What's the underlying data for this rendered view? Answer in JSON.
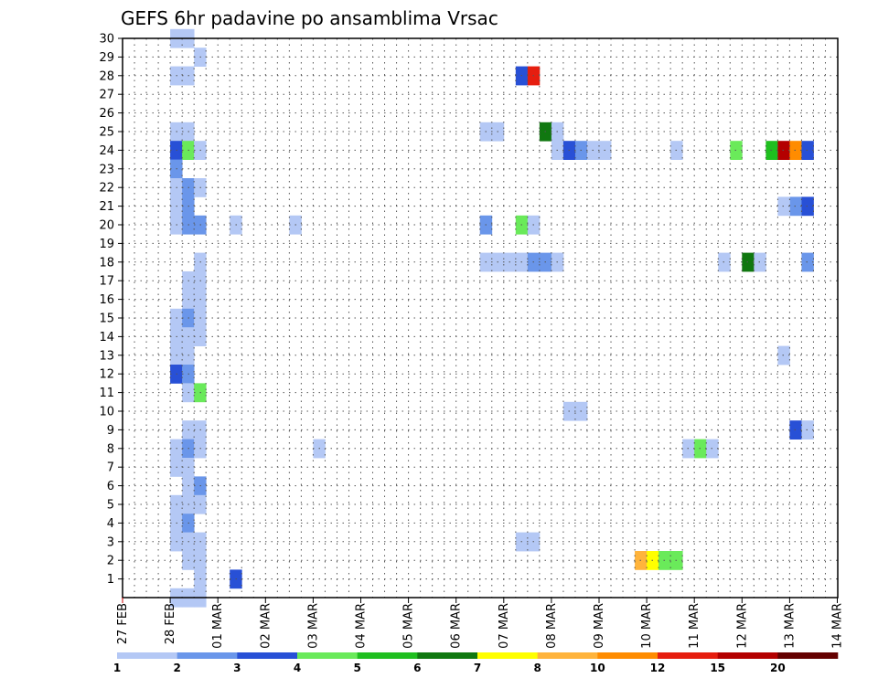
{
  "chart_data": {
    "type": "heatmap",
    "title": "GEFS 6hr padavine po ansamblima Vrsac",
    "xlabel": "",
    "ylabel": "",
    "x_tick_labels": [
      "27 FEB",
      "28 FEB",
      "01 MAR",
      "02 MAR",
      "03 MAR",
      "04 MAR",
      "05 MAR",
      "06 MAR",
      "07 MAR",
      "08 MAR",
      "09 MAR",
      "10 MAR",
      "11 MAR",
      "12 MAR",
      "13 MAR",
      "14 MAR"
    ],
    "x_ticks_per_day": 4,
    "y_tick_labels": [
      "1",
      "2",
      "3",
      "4",
      "5",
      "6",
      "7",
      "8",
      "9",
      "10",
      "11",
      "12",
      "13",
      "14",
      "15",
      "16",
      "17",
      "18",
      "19",
      "20",
      "21",
      "22",
      "23",
      "24",
      "25",
      "26",
      "27",
      "28",
      "29",
      "30"
    ],
    "ylim": [
      0,
      30
    ],
    "grid": true,
    "legend": {
      "placement": "bottom",
      "labels": [
        "1",
        "2",
        "3",
        "4",
        "5",
        "6",
        "7",
        "8",
        "10",
        "12",
        "15",
        "20"
      ],
      "colors": [
        "#b4c8f5",
        "#6a96ea",
        "#2850d6",
        "#6aea5a",
        "#1fbf1f",
        "#107810",
        "#ffff00",
        "#ffb43c",
        "#ff8c00",
        "#e61e0f",
        "#b40000",
        "#640000"
      ]
    },
    "units": "6-hourly step index",
    "cells": [
      {
        "x": 4,
        "y": 30,
        "c": 1
      },
      {
        "x": 5,
        "y": 30,
        "c": 1
      },
      {
        "x": 6,
        "y": 29,
        "c": 1
      },
      {
        "x": 4,
        "y": 28,
        "c": 1
      },
      {
        "x": 5,
        "y": 28,
        "c": 1
      },
      {
        "x": 4,
        "y": 25,
        "c": 1
      },
      {
        "x": 5,
        "y": 25,
        "c": 1
      },
      {
        "x": 4,
        "y": 24,
        "c": 3
      },
      {
        "x": 5,
        "y": 24,
        "c": 4
      },
      {
        "x": 6,
        "y": 24,
        "c": 1
      },
      {
        "x": 4,
        "y": 23,
        "c": 2
      },
      {
        "x": 4,
        "y": 22,
        "c": 1
      },
      {
        "x": 5,
        "y": 22,
        "c": 2
      },
      {
        "x": 6,
        "y": 22,
        "c": 1
      },
      {
        "x": 4,
        "y": 21,
        "c": 1
      },
      {
        "x": 5,
        "y": 21,
        "c": 2
      },
      {
        "x": 4,
        "y": 20,
        "c": 1
      },
      {
        "x": 5,
        "y": 20,
        "c": 2
      },
      {
        "x": 6,
        "y": 20,
        "c": 2
      },
      {
        "x": 9,
        "y": 20,
        "c": 1
      },
      {
        "x": 14,
        "y": 20,
        "c": 1
      },
      {
        "x": 6,
        "y": 18,
        "c": 1
      },
      {
        "x": 6,
        "y": 17,
        "c": 1
      },
      {
        "x": 5,
        "y": 17,
        "c": 1
      },
      {
        "x": 5,
        "y": 16,
        "c": 1
      },
      {
        "x": 6,
        "y": 16,
        "c": 1
      },
      {
        "x": 4,
        "y": 15,
        "c": 1
      },
      {
        "x": 5,
        "y": 15,
        "c": 2
      },
      {
        "x": 6,
        "y": 15,
        "c": 1
      },
      {
        "x": 4,
        "y": 14,
        "c": 1
      },
      {
        "x": 5,
        "y": 14,
        "c": 1
      },
      {
        "x": 6,
        "y": 14,
        "c": 1
      },
      {
        "x": 4,
        "y": 13,
        "c": 1
      },
      {
        "x": 5,
        "y": 13,
        "c": 1
      },
      {
        "x": 4,
        "y": 12,
        "c": 3
      },
      {
        "x": 5,
        "y": 12,
        "c": 2
      },
      {
        "x": 5,
        "y": 11,
        "c": 1
      },
      {
        "x": 6,
        "y": 11,
        "c": 4
      },
      {
        "x": 5,
        "y": 9,
        "c": 1
      },
      {
        "x": 6,
        "y": 9,
        "c": 1
      },
      {
        "x": 4,
        "y": 8,
        "c": 1
      },
      {
        "x": 5,
        "y": 8,
        "c": 2
      },
      {
        "x": 6,
        "y": 8,
        "c": 1
      },
      {
        "x": 16,
        "y": 8,
        "c": 1
      },
      {
        "x": 4,
        "y": 7,
        "c": 1
      },
      {
        "x": 5,
        "y": 7,
        "c": 1
      },
      {
        "x": 5,
        "y": 6,
        "c": 1
      },
      {
        "x": 6,
        "y": 6,
        "c": 2
      },
      {
        "x": 4,
        "y": 5,
        "c": 1
      },
      {
        "x": 5,
        "y": 5,
        "c": 1
      },
      {
        "x": 6,
        "y": 5,
        "c": 1
      },
      {
        "x": 4,
        "y": 4,
        "c": 1
      },
      {
        "x": 5,
        "y": 4,
        "c": 2
      },
      {
        "x": 4,
        "y": 3,
        "c": 1
      },
      {
        "x": 5,
        "y": 3,
        "c": 1
      },
      {
        "x": 6,
        "y": 3,
        "c": 1
      },
      {
        "x": 5,
        "y": 2,
        "c": 1
      },
      {
        "x": 6,
        "y": 2,
        "c": 1
      },
      {
        "x": 6,
        "y": 1,
        "c": 1
      },
      {
        "x": 9,
        "y": 1,
        "c": 3
      },
      {
        "x": 4,
        "y": 0,
        "c": 1
      },
      {
        "x": 5,
        "y": 0,
        "c": 1
      },
      {
        "x": 6,
        "y": 0,
        "c": 1
      },
      {
        "x": 33,
        "y": 28,
        "c": 3
      },
      {
        "x": 34,
        "y": 28,
        "c": 10
      },
      {
        "x": 30,
        "y": 25,
        "c": 1
      },
      {
        "x": 31,
        "y": 25,
        "c": 1
      },
      {
        "x": 35,
        "y": 25,
        "c": 6
      },
      {
        "x": 36,
        "y": 25,
        "c": 1
      },
      {
        "x": 36,
        "y": 24,
        "c": 1
      },
      {
        "x": 37,
        "y": 24,
        "c": 3
      },
      {
        "x": 38,
        "y": 24,
        "c": 2
      },
      {
        "x": 39,
        "y": 24,
        "c": 1
      },
      {
        "x": 40,
        "y": 24,
        "c": 1
      },
      {
        "x": 46,
        "y": 24,
        "c": 1
      },
      {
        "x": 51,
        "y": 24,
        "c": 4
      },
      {
        "x": 54,
        "y": 24,
        "c": 5
      },
      {
        "x": 55,
        "y": 24,
        "c": 11
      },
      {
        "x": 56,
        "y": 24,
        "c": 9
      },
      {
        "x": 57,
        "y": 24,
        "c": 3
      },
      {
        "x": 56,
        "y": 21,
        "c": 2
      },
      {
        "x": 57,
        "y": 21,
        "c": 3
      },
      {
        "x": 55,
        "y": 21,
        "c": 1
      },
      {
        "x": 30,
        "y": 20,
        "c": 2
      },
      {
        "x": 33,
        "y": 20,
        "c": 4
      },
      {
        "x": 34,
        "y": 20,
        "c": 1
      },
      {
        "x": 30,
        "y": 18,
        "c": 1
      },
      {
        "x": 31,
        "y": 18,
        "c": 1
      },
      {
        "x": 32,
        "y": 18,
        "c": 1
      },
      {
        "x": 33,
        "y": 18,
        "c": 1
      },
      {
        "x": 34,
        "y": 18,
        "c": 2
      },
      {
        "x": 35,
        "y": 18,
        "c": 2
      },
      {
        "x": 36,
        "y": 18,
        "c": 1
      },
      {
        "x": 50,
        "y": 18,
        "c": 1
      },
      {
        "x": 52,
        "y": 18,
        "c": 6
      },
      {
        "x": 53,
        "y": 18,
        "c": 1
      },
      {
        "x": 57,
        "y": 18,
        "c": 2
      },
      {
        "x": 55,
        "y": 13,
        "c": 1
      },
      {
        "x": 37,
        "y": 10,
        "c": 1
      },
      {
        "x": 38,
        "y": 10,
        "c": 1
      },
      {
        "x": 56,
        "y": 9,
        "c": 3
      },
      {
        "x": 57,
        "y": 9,
        "c": 1
      },
      {
        "x": 47,
        "y": 8,
        "c": 1
      },
      {
        "x": 48,
        "y": 8,
        "c": 4
      },
      {
        "x": 49,
        "y": 8,
        "c": 1
      },
      {
        "x": 33,
        "y": 3,
        "c": 1
      },
      {
        "x": 34,
        "y": 3,
        "c": 1
      },
      {
        "x": 43,
        "y": 2,
        "c": 8
      },
      {
        "x": 44,
        "y": 2,
        "c": 7
      },
      {
        "x": 45,
        "y": 2,
        "c": 4
      },
      {
        "x": 46,
        "y": 2,
        "c": 4
      }
    ]
  }
}
